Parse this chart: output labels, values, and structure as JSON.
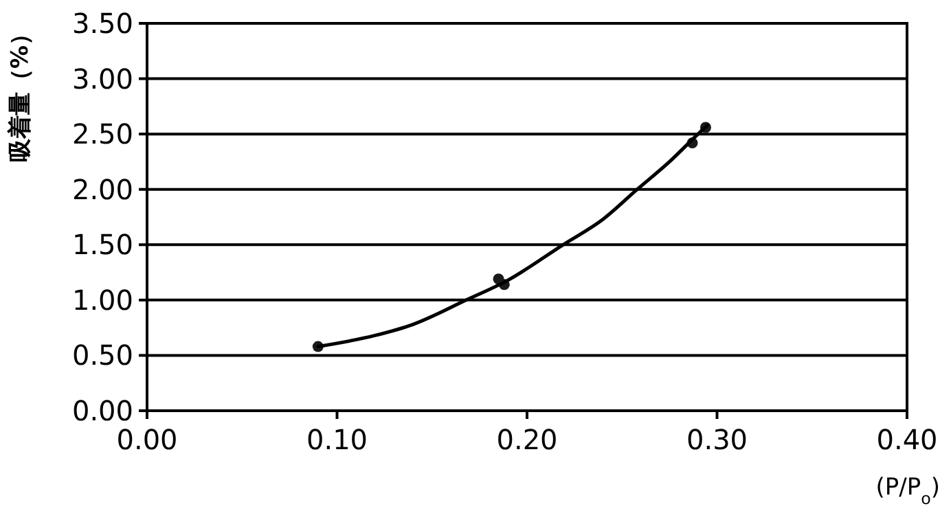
{
  "chart_data": {
    "type": "scatter",
    "xlabel": "(P/P$_{o}$)",
    "ylabel": "吸着量（%）",
    "xlim": [
      0,
      0.4
    ],
    "xticks": [
      {
        "value": 0,
        "label": "0.00"
      },
      {
        "value": 0.1,
        "label": "0.10"
      },
      {
        "value": 0.2,
        "label": "0.20"
      },
      {
        "value": 0.3,
        "label": "0.30"
      },
      {
        "value": 0.4,
        "label": "0.40"
      }
    ],
    "ylim": [
      0,
      3.5
    ],
    "yticks": [
      {
        "value": 0,
        "label": "0.00"
      },
      {
        "value": 0.5,
        "label": "0.50"
      },
      {
        "value": 1,
        "label": "1.00"
      },
      {
        "value": 1.5,
        "label": "1.50"
      },
      {
        "value": 2,
        "label": "2.00"
      },
      {
        "value": 2.5,
        "label": "2.50"
      },
      {
        "value": 3,
        "label": "3.00"
      },
      {
        "value": 3.5,
        "label": "3.50"
      }
    ],
    "grid": "y",
    "marker": "circle",
    "series": [
      {
        "type": "scatter",
        "color": "#1a1a1a",
        "x": [
          0.09,
          0.185,
          0.188,
          0.287,
          0.294
        ],
        "values": [
          0.58,
          1.19,
          1.14,
          2.42,
          2.56
        ]
      },
      {
        "type": "line",
        "color": "#000000",
        "marker": "none",
        "x": [
          0.09,
          0.12,
          0.14,
          0.168,
          0.19,
          0.219,
          0.24,
          0.258,
          0.275,
          0.29,
          0.295
        ],
        "values": [
          0.58,
          0.68,
          0.78,
          1.0,
          1.18,
          1.5,
          1.73,
          2.0,
          2.25,
          2.5,
          2.58
        ]
      }
    ]
  }
}
